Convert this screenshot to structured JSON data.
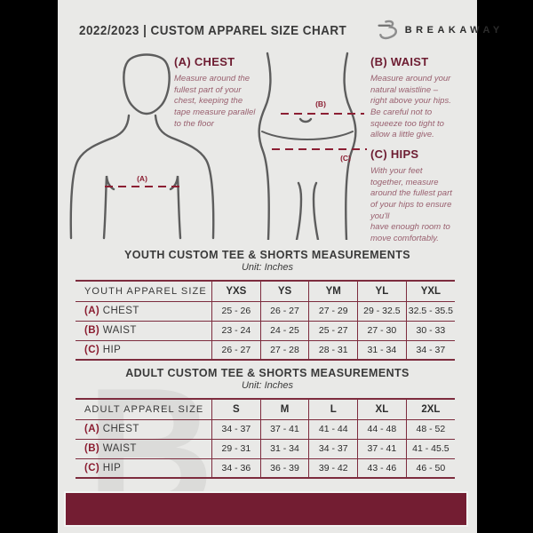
{
  "header": {
    "title": "2022/2023  |  CUSTOM APPAREL SIZE CHART",
    "brand": "BREAKAWAY",
    "logo_icon": "breakaway-b-logo"
  },
  "guides": [
    {
      "heading": "(A) CHEST",
      "text": "Measure around the\nfullest part of your\nchest, keeping the\ntape measure parallel\nto the floor"
    },
    {
      "heading": "(B) WAIST",
      "text": "Measure around your\nnatural waistline –\nright above your hips.\nBe careful not to\nsqueeze too tight to\nallow a little give."
    },
    {
      "heading": "(C) HIPS",
      "text": "With your feet\ntogether, measure\naround the fullest part\nof your hips to ensure\nyou'll\nhave enough room to\nmove comfortably."
    }
  ],
  "diagram": {
    "chest_label": "(A)",
    "waist_label": "(B)",
    "hips_label": "(C)"
  },
  "tables": [
    {
      "title": "YOUTH CUSTOM TEE & SHORTS MEASUREMENTS",
      "unit": "Unit: Inches",
      "header": [
        "YOUTH APPAREL SIZE",
        "YXS",
        "YS",
        "YM",
        "YL",
        "YXL"
      ],
      "rows": [
        {
          "key": "(A)",
          "label": "CHEST",
          "values": [
            "25 - 26",
            "26 - 27",
            "27 - 29",
            "29 - 32.5",
            "32.5 - 35.5"
          ]
        },
        {
          "key": "(B)",
          "label": "WAIST",
          "values": [
            "23 - 24",
            "24 - 25",
            "25 - 27",
            "27 - 30",
            "30 - 33"
          ]
        },
        {
          "key": "(C)",
          "label": "HIP",
          "values": [
            "26 - 27",
            "27 - 28",
            "28 - 31",
            "31 - 34",
            "34 - 37"
          ]
        }
      ]
    },
    {
      "title": "ADULT CUSTOM TEE & SHORTS MEASUREMENTS",
      "unit": "Unit: Inches",
      "header": [
        "ADULT APPAREL SIZE",
        "S",
        "M",
        "L",
        "XL",
        "2XL"
      ],
      "rows": [
        {
          "key": "(A)",
          "label": "CHEST",
          "values": [
            "34 - 37",
            "37 - 41",
            "41 - 44",
            "44 - 48",
            "48 - 52"
          ]
        },
        {
          "key": "(B)",
          "label": "WAIST",
          "values": [
            "29 - 31",
            "31 - 34",
            "34 - 37",
            "37 - 41",
            "41 - 45.5"
          ]
        },
        {
          "key": "(C)",
          "label": "HIP",
          "values": [
            "34 - 36",
            "36 - 39",
            "39 - 42",
            "43 - 46",
            "46 - 50"
          ]
        }
      ]
    }
  ],
  "watermark_letter": "B",
  "colors": {
    "maroon": "#731d32",
    "table_line": "#7d2c3e",
    "dashed_line": "#8c1f33",
    "guide_text": "#99606f",
    "figure_outline": "#5d5d5d",
    "page_background": "#e9e9e7",
    "text_dark": "#3a3a3a"
  }
}
